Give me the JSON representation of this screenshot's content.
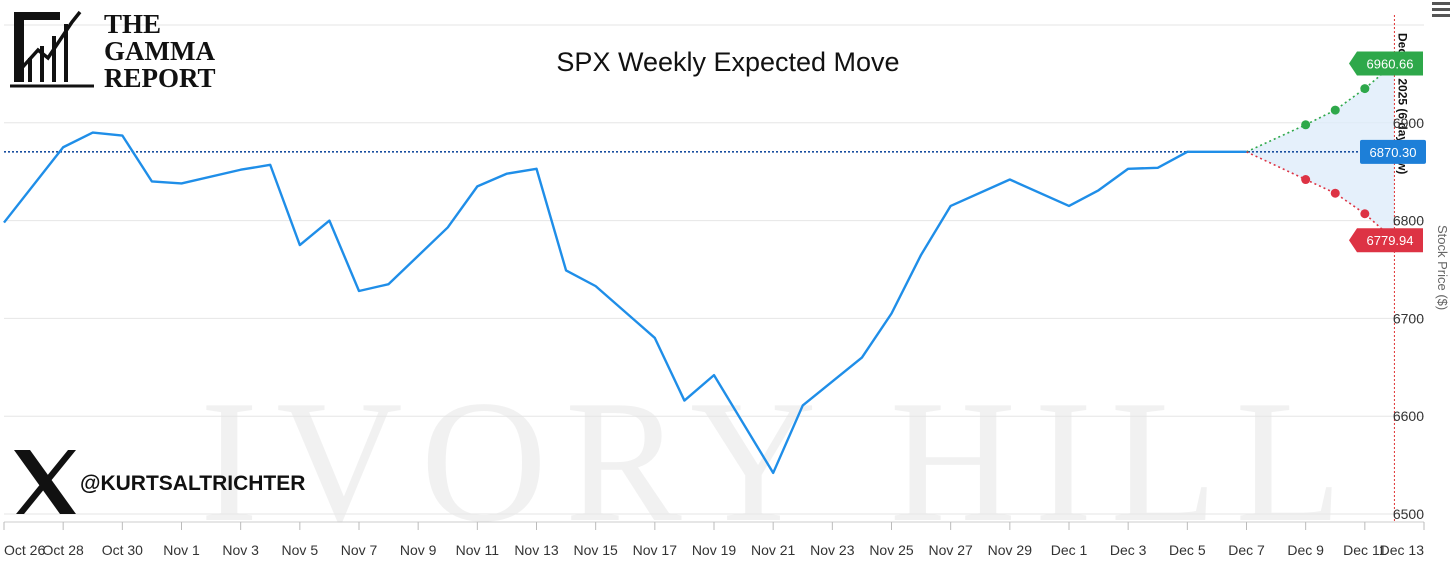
{
  "logo": {
    "lines": [
      "THE",
      "GAMMA",
      "REPORT"
    ]
  },
  "watermark": "IVORY HILL",
  "social": {
    "icon": "x-logo-icon",
    "handle": "@KURTSALTRICHTER"
  },
  "menu_icon": "hamburger-menu-icon",
  "colors": {
    "line": "#1f8ee8",
    "current": "#1a4fa0",
    "upper": "#2ea84a",
    "lower": "#dd3344",
    "band": "#dcebfa",
    "grid": "#e6e6e6",
    "expiry_line": "#e03030"
  },
  "chart_data": {
    "type": "line",
    "title": "SPX Weekly Expected Move",
    "ylabel": "Stock Price ($)",
    "xlabel": "",
    "ylim": [
      6500,
      7000
    ],
    "yticks": [
      6500,
      6600,
      6700,
      6800,
      6900
    ],
    "xlim": [
      "2025-10-26",
      "2025-12-13"
    ],
    "xtick_labels": [
      "Oct 26",
      "Oct 28",
      "Oct 30",
      "Nov 1",
      "Nov 3",
      "Nov 5",
      "Nov 7",
      "Nov 9",
      "Nov 11",
      "Nov 13",
      "Nov 15",
      "Nov 17",
      "Nov 19",
      "Nov 21",
      "Nov 23",
      "Nov 25",
      "Nov 27",
      "Nov 29",
      "Dec 1",
      "Dec 3",
      "Dec 5",
      "Dec 7",
      "Dec 9",
      "Dec 11",
      "Dec 13"
    ],
    "grid": true,
    "series": [
      {
        "points": [
          [
            "2025-10-26",
            6798
          ],
          [
            "2025-10-28",
            6875
          ],
          [
            "2025-10-29",
            6890
          ],
          [
            "2025-10-30",
            6887
          ],
          [
            "2025-10-31",
            6840
          ],
          [
            "2025-11-01",
            6838
          ],
          [
            "2025-11-03",
            6852
          ],
          [
            "2025-11-04",
            6857
          ],
          [
            "2025-11-05",
            6775
          ],
          [
            "2025-11-06",
            6800
          ],
          [
            "2025-11-07",
            6728
          ],
          [
            "2025-11-08",
            6735
          ],
          [
            "2025-11-10",
            6793
          ],
          [
            "2025-11-11",
            6835
          ],
          [
            "2025-11-12",
            6848
          ],
          [
            "2025-11-13",
            6853
          ],
          [
            "2025-11-14",
            6749
          ],
          [
            "2025-11-15",
            6733
          ],
          [
            "2025-11-17",
            6680
          ],
          [
            "2025-11-18",
            6616
          ],
          [
            "2025-11-19",
            6642
          ],
          [
            "2025-11-21",
            6542
          ],
          [
            "2025-11-22",
            6611
          ],
          [
            "2025-11-24",
            6660
          ],
          [
            "2025-11-25",
            6705
          ],
          [
            "2025-11-26",
            6765
          ],
          [
            "2025-11-27",
            6815
          ],
          [
            "2025-11-29",
            6842
          ],
          [
            "2025-12-01",
            6815
          ],
          [
            "2025-12-02",
            6831
          ],
          [
            "2025-12-03",
            6853
          ],
          [
            "2025-12-04",
            6854
          ],
          [
            "2025-12-05",
            6870.3
          ],
          [
            "2025-12-07",
            6870.3
          ]
        ]
      }
    ],
    "current_price": {
      "value": 6870.3,
      "label": "6870.30"
    },
    "expected_move": {
      "start": [
        "2025-12-07",
        6870.3
      ],
      "upper": [
        [
          "2025-12-09",
          6898
        ],
        [
          "2025-12-10",
          6913
        ],
        [
          "2025-12-11",
          6935
        ],
        [
          "2025-12-12",
          6960.66
        ]
      ],
      "lower": [
        [
          "2025-12-09",
          6842
        ],
        [
          "2025-12-10",
          6828
        ],
        [
          "2025-12-11",
          6807
        ],
        [
          "2025-12-12",
          6779.94
        ]
      ],
      "upper_label": "6960.66",
      "lower_label": "6779.94"
    },
    "expiry": {
      "date": "2025-12-12",
      "label": "Dec 12, 2025 (6 days) (w)"
    }
  }
}
